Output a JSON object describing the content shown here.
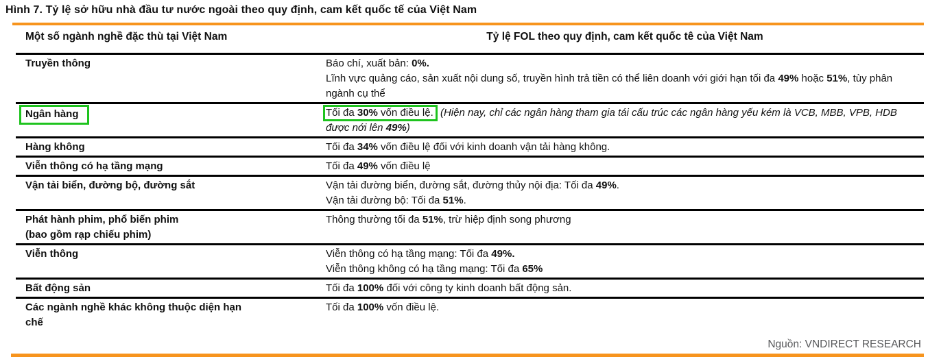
{
  "figure": {
    "title": "Hình 7. Tỷ lệ sở hữu nhà đầu tư nước ngoài theo quy định, cam kết quốc tế của Việt Nam"
  },
  "colors": {
    "accent_orange": "#F7941D",
    "highlight_green": "#1EC31E",
    "source_gray": "#58595B"
  },
  "table": {
    "columns": [
      "Một số ngành nghề đặc thù tại Việt Nam",
      "Tỷ lệ FOL theo quy định, cam kết quốc tê của Việt Nam"
    ],
    "rows": [
      {
        "industry_lines": [
          "Truyền thông"
        ],
        "industry_highlight": false,
        "fol_lines": [
          [
            {
              "t": "Báo chí, xuất bản: "
            },
            {
              "t": "0%.",
              "b": true
            }
          ],
          [
            {
              "t": "Lĩnh vực quảng cáo, sản xuất nội dung số, truyền hình trả tiền có thể liên doanh với giới hạn tối đa "
            },
            {
              "t": "49%",
              "b": true
            },
            {
              "t": " hoặc "
            },
            {
              "t": "51%",
              "b": true
            },
            {
              "t": ", tùy phân ngành cụ thể"
            }
          ]
        ]
      },
      {
        "industry_lines": [
          "Ngân hàng"
        ],
        "industry_highlight": true,
        "fol_lines": [
          [
            {
              "t": "Tối đa ",
              "hl": true
            },
            {
              "t": "30%",
              "b": true,
              "hl": true
            },
            {
              "t": " vốn điều lệ.",
              "hl": true
            },
            {
              "t": " "
            },
            {
              "t": "(Hiện nay, chỉ các ngân hàng tham gia tái cấu trúc các ngân hàng yếu kém là VCB, MBB, VPB, HDB được nới lên ",
              "i": true
            },
            {
              "t": "49%",
              "b": true,
              "i": true
            },
            {
              "t": ")",
              "i": true
            }
          ]
        ]
      },
      {
        "industry_lines": [
          "Hàng không"
        ],
        "industry_highlight": false,
        "fol_lines": [
          [
            {
              "t": "Tối đa "
            },
            {
              "t": "34%",
              "b": true
            },
            {
              "t": " vốn điều lệ đối với kinh doanh vận tải hàng không."
            }
          ]
        ]
      },
      {
        "industry_lines": [
          "Viễn thông có hạ tầng mạng"
        ],
        "industry_highlight": false,
        "fol_lines": [
          [
            {
              "t": "Tối đa "
            },
            {
              "t": "49%",
              "b": true
            },
            {
              "t": " vốn điều lệ"
            }
          ]
        ]
      },
      {
        "industry_lines": [
          "Vận tải biển, đường bộ, đường sắt"
        ],
        "industry_highlight": false,
        "fol_lines": [
          [
            {
              "t": "Vận tải đường biển, đường sắt, đường thủy nội địa: Tối đa "
            },
            {
              "t": "49%",
              "b": true
            },
            {
              "t": "."
            }
          ],
          [
            {
              "t": "Vận tải đường bộ: Tối đa "
            },
            {
              "t": "51%",
              "b": true
            },
            {
              "t": "."
            }
          ]
        ]
      },
      {
        "industry_lines": [
          "Phát hành phim, phổ biến phim",
          "(bao gồm rạp chiếu phim)"
        ],
        "industry_highlight": false,
        "fol_lines": [
          [
            {
              "t": "Thông thường tối đa "
            },
            {
              "t": "51%",
              "b": true
            },
            {
              "t": ", trừ hiệp định song phương"
            }
          ]
        ]
      },
      {
        "industry_lines": [
          "Viễn thông"
        ],
        "industry_highlight": false,
        "fol_lines": [
          [
            {
              "t": "Viễn thông có hạ tầng mạng: Tối đa "
            },
            {
              "t": "49%.",
              "b": true
            }
          ],
          [
            {
              "t": "Viễn thông không có hạ tầng mạng: Tối đa "
            },
            {
              "t": "65%",
              "b": true
            }
          ]
        ]
      },
      {
        "industry_lines": [
          "Bất động sản"
        ],
        "industry_highlight": false,
        "fol_lines": [
          [
            {
              "t": "Tối đa "
            },
            {
              "t": "100%",
              "b": true
            },
            {
              "t": " đối với công ty kinh doanh bất động sản."
            }
          ]
        ]
      },
      {
        "industry_lines": [
          "Các ngành nghề khác không thuộc diện hạn",
          "chế"
        ],
        "industry_highlight": false,
        "fol_lines": [
          [
            {
              "t": "Tối đa "
            },
            {
              "t": "100%",
              "b": true
            },
            {
              "t": " vốn điều lệ."
            }
          ]
        ]
      }
    ]
  },
  "source": "Nguồn: VNDIRECT RESEARCH"
}
